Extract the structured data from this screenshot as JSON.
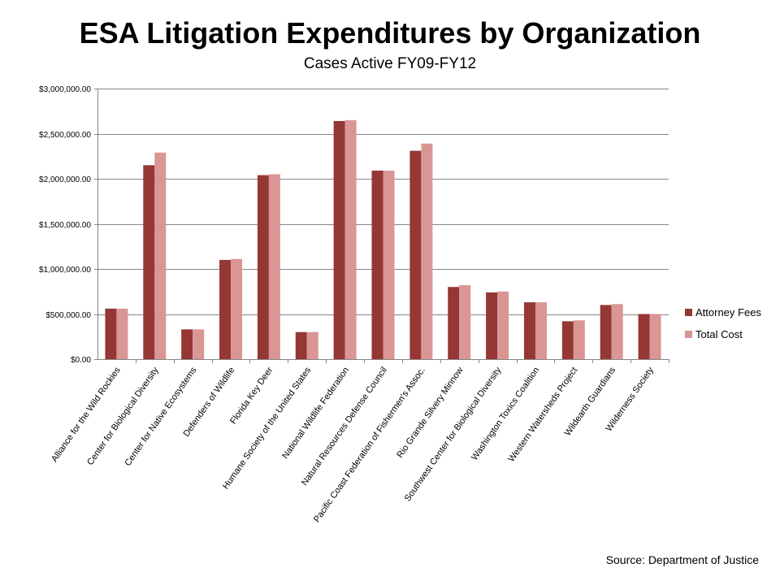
{
  "source": "Source: Department of Justice",
  "chart_data": {
    "type": "bar",
    "title": "ESA Litigation Expenditures by Organization",
    "subtitle": "Cases Active FY09-FY12",
    "xlabel": "",
    "ylabel": "",
    "ylim": [
      0,
      3000000
    ],
    "yticks": [
      0,
      500000,
      1000000,
      1500000,
      2000000,
      2500000,
      3000000
    ],
    "ytick_labels": [
      "$0.00",
      "$500,000.00",
      "$1,000,000.00",
      "$1,500,000.00",
      "$2,000,000.00",
      "$2,500,000.00",
      "$3,000,000.00"
    ],
    "grid": true,
    "legend_position": "right",
    "categories": [
      "Alliance for the Wild Rockies",
      "Center for Biological Diversity",
      "Center for Native Ecosystems",
      "Defenders of Wildlife",
      "Florida Key Deer",
      "Humane Society of the United States",
      "National Wildlife Federation",
      "Natural Resources Defense Council",
      "Pacific Coast Federation of Fishermen's Assoc.",
      "Rio Grande Silvery Minnow",
      "Southwest Center for Biological Diversity",
      "Washington Toxics Coalition",
      "Western Watersheds Project",
      "Wildearth Guardians",
      "Wilderness Society"
    ],
    "series": [
      {
        "name": "Attorney Fees",
        "color": "#953735",
        "values": [
          560000,
          2150000,
          330000,
          1100000,
          2040000,
          300000,
          2640000,
          2090000,
          2310000,
          800000,
          740000,
          630000,
          420000,
          600000,
          500000
        ]
      },
      {
        "name": "Total Cost",
        "color": "#D99694",
        "values": [
          560000,
          2290000,
          330000,
          1110000,
          2050000,
          300000,
          2650000,
          2090000,
          2390000,
          820000,
          750000,
          630000,
          430000,
          610000,
          500000
        ]
      }
    ]
  }
}
